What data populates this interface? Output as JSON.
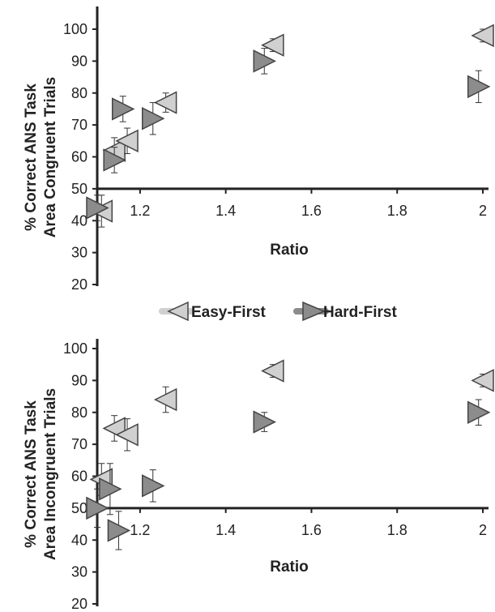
{
  "legend": [
    {
      "label": "Easy-First",
      "color": "#d0d0d0",
      "marker": "left-triangle"
    },
    {
      "label": "Hard-First",
      "color": "#8c8c8c",
      "marker": "right-triangle"
    }
  ],
  "chart_data": [
    {
      "type": "scatter",
      "title": "",
      "xlabel": "Ratio",
      "ylabel_line1": "% Correct ANS Task",
      "ylabel_line2": "Area Congruent Trials",
      "xlim": [
        1.1,
        2.0
      ],
      "ylim": [
        20,
        100
      ],
      "x_ticks": [
        1.2,
        1.4,
        1.6,
        1.8,
        2
      ],
      "y_ticks": [
        20,
        30,
        40,
        50,
        60,
        70,
        80,
        90,
        100
      ],
      "x_axis_crosses_y": 50,
      "series": [
        {
          "name": "Easy-First",
          "color": "#d0d0d0",
          "marker": "left-triangle",
          "x": [
            1.11,
            1.14,
            1.17,
            1.26,
            1.51,
            2.0
          ],
          "y": [
            43,
            62,
            65,
            77,
            95,
            98
          ],
          "err": [
            5,
            4,
            4,
            3,
            2,
            2
          ]
        },
        {
          "name": "Hard-First",
          "color": "#8c8c8c",
          "marker": "right-triangle",
          "x": [
            1.1,
            1.14,
            1.16,
            1.23,
            1.49,
            1.99
          ],
          "y": [
            44,
            59,
            75,
            72,
            90,
            82
          ],
          "err": [
            4,
            4,
            4,
            5,
            4,
            5
          ]
        }
      ]
    },
    {
      "type": "scatter",
      "title": "",
      "xlabel": "Ratio",
      "ylabel_line1": "% Correct ANS Task",
      "ylabel_line2": "Area Incongruent Trials",
      "xlim": [
        1.1,
        2.0
      ],
      "ylim": [
        20,
        100
      ],
      "x_ticks": [
        1.2,
        1.4,
        1.6,
        1.8,
        2
      ],
      "y_ticks": [
        20,
        30,
        40,
        50,
        60,
        70,
        80,
        90,
        100
      ],
      "x_axis_crosses_y": 50,
      "series": [
        {
          "name": "Easy-First",
          "color": "#d0d0d0",
          "marker": "left-triangle",
          "x": [
            1.11,
            1.14,
            1.17,
            1.26,
            1.51,
            2.0
          ],
          "y": [
            59,
            75,
            73,
            84,
            93,
            90
          ],
          "err": [
            5,
            4,
            5,
            4,
            2,
            2
          ]
        },
        {
          "name": "Hard-First",
          "color": "#8c8c8c",
          "marker": "right-triangle",
          "x": [
            1.1,
            1.13,
            1.15,
            1.23,
            1.49,
            1.99
          ],
          "y": [
            50,
            56,
            43,
            57,
            77,
            80
          ],
          "err": [
            6,
            8,
            6,
            5,
            3,
            4
          ]
        }
      ]
    }
  ]
}
